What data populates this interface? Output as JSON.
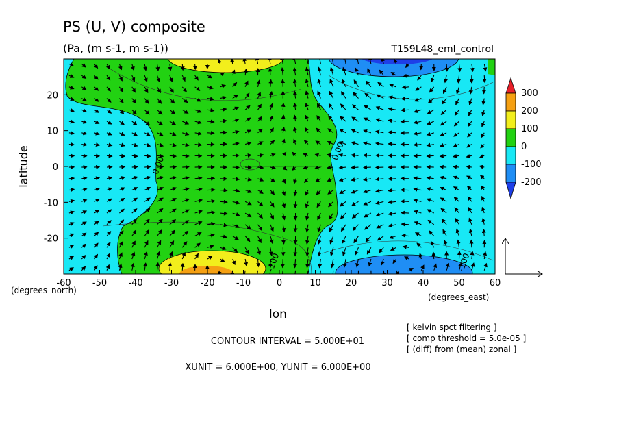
{
  "chart_data": {
    "type": "heatmap",
    "title": "PS (U, V) composite",
    "subtitle": "(Pa, (m s-1, m s-1))",
    "dataset_label": "T159L48_eml_control",
    "xlabel": "lon",
    "ylabel": "latitude",
    "x_unit_note": "(degrees_east)",
    "y_unit_note": "(degrees_north)",
    "xlim": [
      -60,
      60
    ],
    "ylim": [
      -30,
      30
    ],
    "x_ticks": [
      -60,
      -50,
      -40,
      -30,
      -20,
      -10,
      0,
      10,
      20,
      30,
      40,
      50,
      60
    ],
    "y_ticks": [
      20,
      10,
      0,
      -10,
      -20
    ],
    "x_tick_labels": [
      "-60",
      "-50",
      "-40",
      "-30",
      "-20",
      "-10",
      "0",
      "10",
      "20",
      "30",
      "40",
      "50",
      "60"
    ],
    "y_tick_labels": [
      "20",
      "10",
      "0",
      "-10",
      "-20"
    ],
    "colorbar": {
      "levels": [
        -200,
        -100,
        0,
        100,
        200,
        300
      ],
      "labels": [
        "300",
        "200",
        "100",
        "0",
        "-100",
        "-200"
      ],
      "colors": [
        "#e8202a",
        "#f5a012",
        "#f2ee1c",
        "#22d212",
        "#18e8f5",
        "#1f8ef5",
        "#1e3fe8"
      ]
    },
    "contour_labels": [
      {
        "text": "0.00",
        "x": -33,
        "y": 0
      },
      {
        "text": "0.00",
        "x": 17,
        "y": 4
      },
      {
        "text": "-100",
        "x": -1,
        "y": -27
      },
      {
        "text": "-100",
        "x": 52,
        "y": -27
      }
    ],
    "features": [
      {
        "name": "positive anomaly",
        "x": -18,
        "y": 30,
        "value": 150
      },
      {
        "name": "positive anomaly",
        "x": -18,
        "y": -30,
        "value": 200
      },
      {
        "name": "negative anomaly",
        "x": 35,
        "y": 30,
        "value": -200
      },
      {
        "name": "negative anomaly",
        "x": 35,
        "y": -28,
        "value": -200
      }
    ],
    "annotations": {
      "contour_interval": "CONTOUR INTERVAL = 5.000E+01",
      "units": "XUNIT = 6.000E+00, YUNIT = 6.000E+00",
      "notes": [
        "[ kelvin spct filtering ]",
        "[ comp threshold = 5.0e-05 ]",
        "[ (diff) from (mean) zonal ]"
      ]
    }
  }
}
